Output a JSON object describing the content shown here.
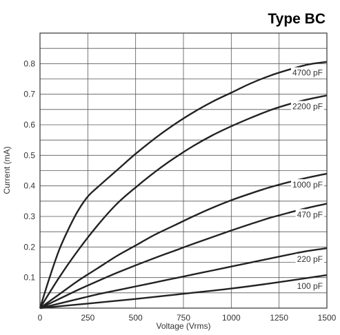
{
  "chart_data": {
    "type": "line",
    "title": "Type BC",
    "xlabel": "Voltage (Vrms)",
    "ylabel": "Current (mA)",
    "xlim": [
      0,
      1500
    ],
    "ylim": [
      0,
      0.9
    ],
    "xticks": [
      "0",
      "250",
      "500",
      "750",
      "1000",
      "1250",
      "1500"
    ],
    "yticks": [
      "0.1",
      "0.2",
      "0.3",
      "0.4",
      "0.5",
      "0.6",
      "0.7",
      "0.8"
    ],
    "grid": true,
    "line_color": "#222222",
    "series": [
      {
        "name": "4700 pF",
        "x": [
          0,
          50,
          100,
          150,
          200,
          250,
          300,
          400,
          500,
          600,
          700,
          800,
          900,
          1000,
          1100,
          1200,
          1300,
          1400,
          1500
        ],
        "y": [
          0,
          0.1,
          0.19,
          0.26,
          0.32,
          0.365,
          0.395,
          0.45,
          0.505,
          0.555,
          0.6,
          0.64,
          0.675,
          0.705,
          0.735,
          0.76,
          0.78,
          0.797,
          0.806
        ]
      },
      {
        "name": "2200 pF",
        "x": [
          0,
          100,
          200,
          300,
          400,
          500,
          600,
          700,
          800,
          900,
          1000,
          1100,
          1200,
          1300,
          1400,
          1500
        ],
        "y": [
          0,
          0.1,
          0.19,
          0.27,
          0.34,
          0.395,
          0.445,
          0.49,
          0.53,
          0.565,
          0.595,
          0.622,
          0.647,
          0.667,
          0.683,
          0.696
        ]
      },
      {
        "name": "1000 pF",
        "x": [
          0,
          100,
          200,
          300,
          400,
          500,
          600,
          700,
          800,
          900,
          1000,
          1100,
          1200,
          1300,
          1400,
          1500
        ],
        "y": [
          0,
          0.045,
          0.09,
          0.13,
          0.17,
          0.205,
          0.24,
          0.27,
          0.3,
          0.328,
          0.353,
          0.375,
          0.395,
          0.412,
          0.427,
          0.44
        ]
      },
      {
        "name": "470 pF",
        "x": [
          0,
          100,
          200,
          300,
          400,
          500,
          600,
          700,
          800,
          900,
          1000,
          1100,
          1200,
          1300,
          1400,
          1500
        ],
        "y": [
          0,
          0.03,
          0.06,
          0.088,
          0.115,
          0.14,
          0.164,
          0.187,
          0.21,
          0.232,
          0.254,
          0.275,
          0.295,
          0.312,
          0.328,
          0.342
        ]
      },
      {
        "name": "220 pF",
        "x": [
          0,
          100,
          200,
          300,
          400,
          500,
          600,
          700,
          800,
          900,
          1000,
          1100,
          1200,
          1300,
          1400,
          1500
        ],
        "y": [
          0,
          0.015,
          0.03,
          0.045,
          0.058,
          0.071,
          0.084,
          0.097,
          0.11,
          0.123,
          0.136,
          0.149,
          0.162,
          0.175,
          0.187,
          0.196
        ]
      },
      {
        "name": "100 pF",
        "x": [
          0,
          250,
          500,
          750,
          1000,
          1250,
          1500
        ],
        "y": [
          0,
          0.015,
          0.03,
          0.047,
          0.064,
          0.085,
          0.108
        ]
      }
    ]
  }
}
